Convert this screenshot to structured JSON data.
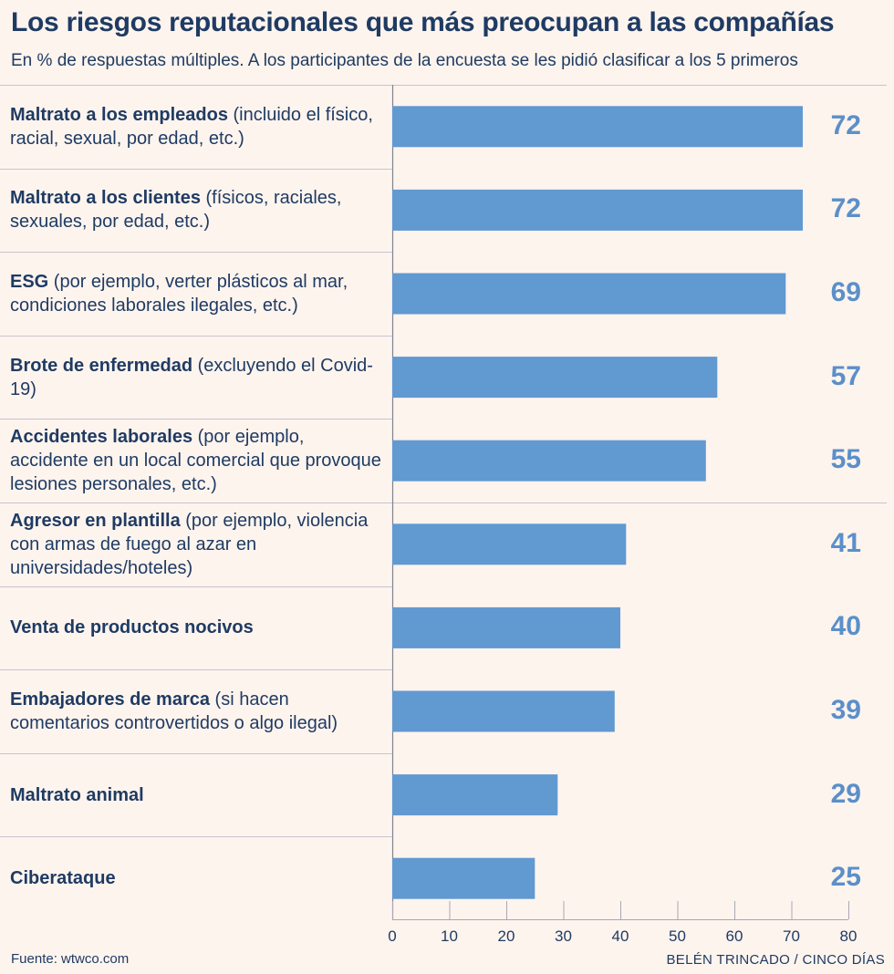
{
  "chart_data": {
    "type": "bar",
    "orientation": "horizontal",
    "title": "Los riesgos reputacionales que más preocupan a las compañías",
    "subtitle": "En % de respuestas múltiples. A los participantes de la encuesta se les pidió clasificar a los 5 primeros",
    "categories": [
      {
        "bold": "Maltrato a los empleados",
        "rest": " (incluido el físico, racial, sexual, por edad, etc.)"
      },
      {
        "bold": "Maltrato a los clientes",
        "rest": " (físicos, raciales, sexuales, por edad, etc.)"
      },
      {
        "bold": "ESG",
        "rest": " (por ejemplo, verter plásticos al mar, condiciones laborales ilegales, etc.)"
      },
      {
        "bold": "Brote de enfermedad",
        "rest": " (excluyendo el Covid-19)"
      },
      {
        "bold": "Accidentes laborales",
        "rest": " (por ejemplo, accidente en un local comercial que provoque lesiones personales, etc.)"
      },
      {
        "bold": "Agresor en plantilla",
        "rest": " (por ejemplo, violencia con armas de fuego al azar en universidades/hoteles)"
      },
      {
        "bold": "Venta de productos nocivos",
        "rest": ""
      },
      {
        "bold": "Embajadores de marca",
        "rest": " (si hacen comentarios controvertidos o algo ilegal)"
      },
      {
        "bold": "Maltrato animal",
        "rest": ""
      },
      {
        "bold": "Ciberataque",
        "rest": ""
      }
    ],
    "values": [
      72,
      72,
      69,
      57,
      55,
      41,
      40,
      39,
      29,
      25
    ],
    "xlim": [
      0,
      80
    ],
    "xticks": [
      "0",
      "10",
      "20",
      "30",
      "40",
      "50",
      "60",
      "70",
      "80"
    ],
    "bar_color": "#6199d1",
    "value_color": "#5b8fc9",
    "xlabel": "",
    "ylabel": ""
  },
  "footer": {
    "source": "Fuente: wtwco.com",
    "credit": "BELÉN TRINCADO / CINCO DÍAS"
  }
}
